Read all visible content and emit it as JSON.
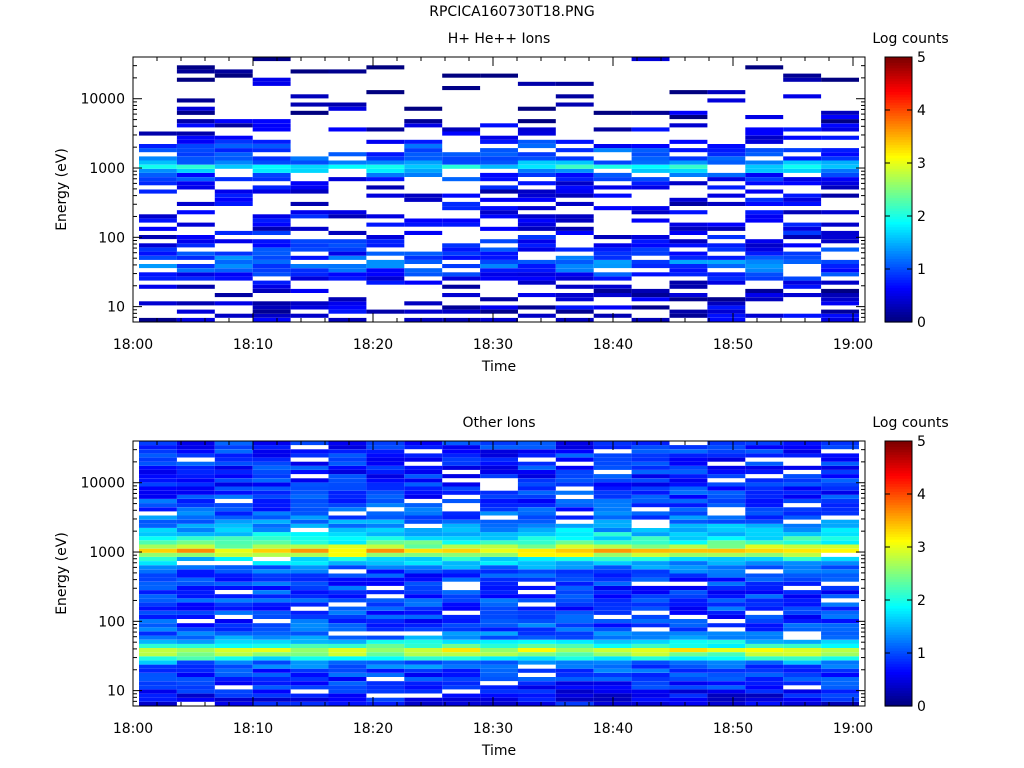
{
  "figure_title": "RPCICA160730T18.PNG",
  "chart_data": [
    {
      "type": "heatmap",
      "title": "H+ He++ Ions",
      "xlabel": "Time",
      "ylabel": "Energy (eV)",
      "yscale": "log",
      "ylim": [
        6,
        40000
      ],
      "x_ticks": [
        "18:00",
        "18:10",
        "18:20",
        "18:30",
        "18:40",
        "18:50",
        "19:00"
      ],
      "y_ticks": [
        "10",
        "100",
        "1000",
        "10000"
      ],
      "colorbar": {
        "label": "Log counts",
        "ticks": [
          "0",
          "1",
          "2",
          "3",
          "4",
          "5"
        ],
        "range": [
          0,
          5
        ]
      },
      "time_range_min": [
        0,
        61
      ],
      "n_time_bins": 19,
      "level_profile": {
        "energy_bands_eV": [
          8,
          12,
          18,
          25,
          35,
          45,
          60,
          100,
          200,
          500,
          800,
          1000,
          1300,
          2000,
          3000,
          5000,
          10000,
          20000,
          35000
        ],
        "typical_log_counts": [
          0.4,
          0.4,
          0.3,
          0.6,
          1.0,
          1.2,
          0.8,
          0.6,
          0.5,
          0.5,
          0.9,
          2.0,
          1.0,
          0.9,
          0.5,
          0.3,
          0.2,
          0.2,
          0.2
        ],
        "fill_fraction": [
          0.5,
          0.5,
          0.35,
          0.7,
          0.85,
          0.9,
          0.7,
          0.45,
          0.45,
          0.55,
          0.7,
          1.0,
          0.75,
          0.55,
          0.35,
          0.25,
          0.15,
          0.12,
          0.2
        ]
      }
    },
    {
      "type": "heatmap",
      "title": "Other Ions",
      "xlabel": "Time",
      "ylabel": "Energy (eV)",
      "yscale": "log",
      "ylim": [
        6,
        40000
      ],
      "x_ticks": [
        "18:00",
        "18:10",
        "18:20",
        "18:30",
        "18:40",
        "18:50",
        "19:00"
      ],
      "y_ticks": [
        "10",
        "100",
        "1000",
        "10000"
      ],
      "colorbar": {
        "label": "Log counts",
        "ticks": [
          "0",
          "1",
          "2",
          "3",
          "4",
          "5"
        ],
        "range": [
          0,
          5
        ]
      },
      "time_range_min": [
        0,
        61
      ],
      "n_time_bins": 19,
      "level_profile": {
        "energy_bands_eV": [
          8,
          12,
          18,
          25,
          32,
          38,
          45,
          60,
          100,
          200,
          500,
          800,
          1000,
          1300,
          2000,
          3000,
          5000,
          10000,
          20000,
          35000
        ],
        "typical_log_counts": [
          0.6,
          0.8,
          0.9,
          1.2,
          2.4,
          3.0,
          2.0,
          1.2,
          0.9,
          0.9,
          0.9,
          1.8,
          3.6,
          2.2,
          1.6,
          1.1,
          0.9,
          0.8,
          0.8,
          0.8
        ],
        "fill_fraction": [
          0.92,
          0.95,
          0.95,
          0.97,
          1.0,
          1.0,
          1.0,
          0.92,
          0.9,
          0.9,
          0.92,
          0.97,
          1.0,
          1.0,
          0.97,
          0.92,
          0.9,
          0.88,
          0.85,
          0.9
        ]
      }
    }
  ]
}
